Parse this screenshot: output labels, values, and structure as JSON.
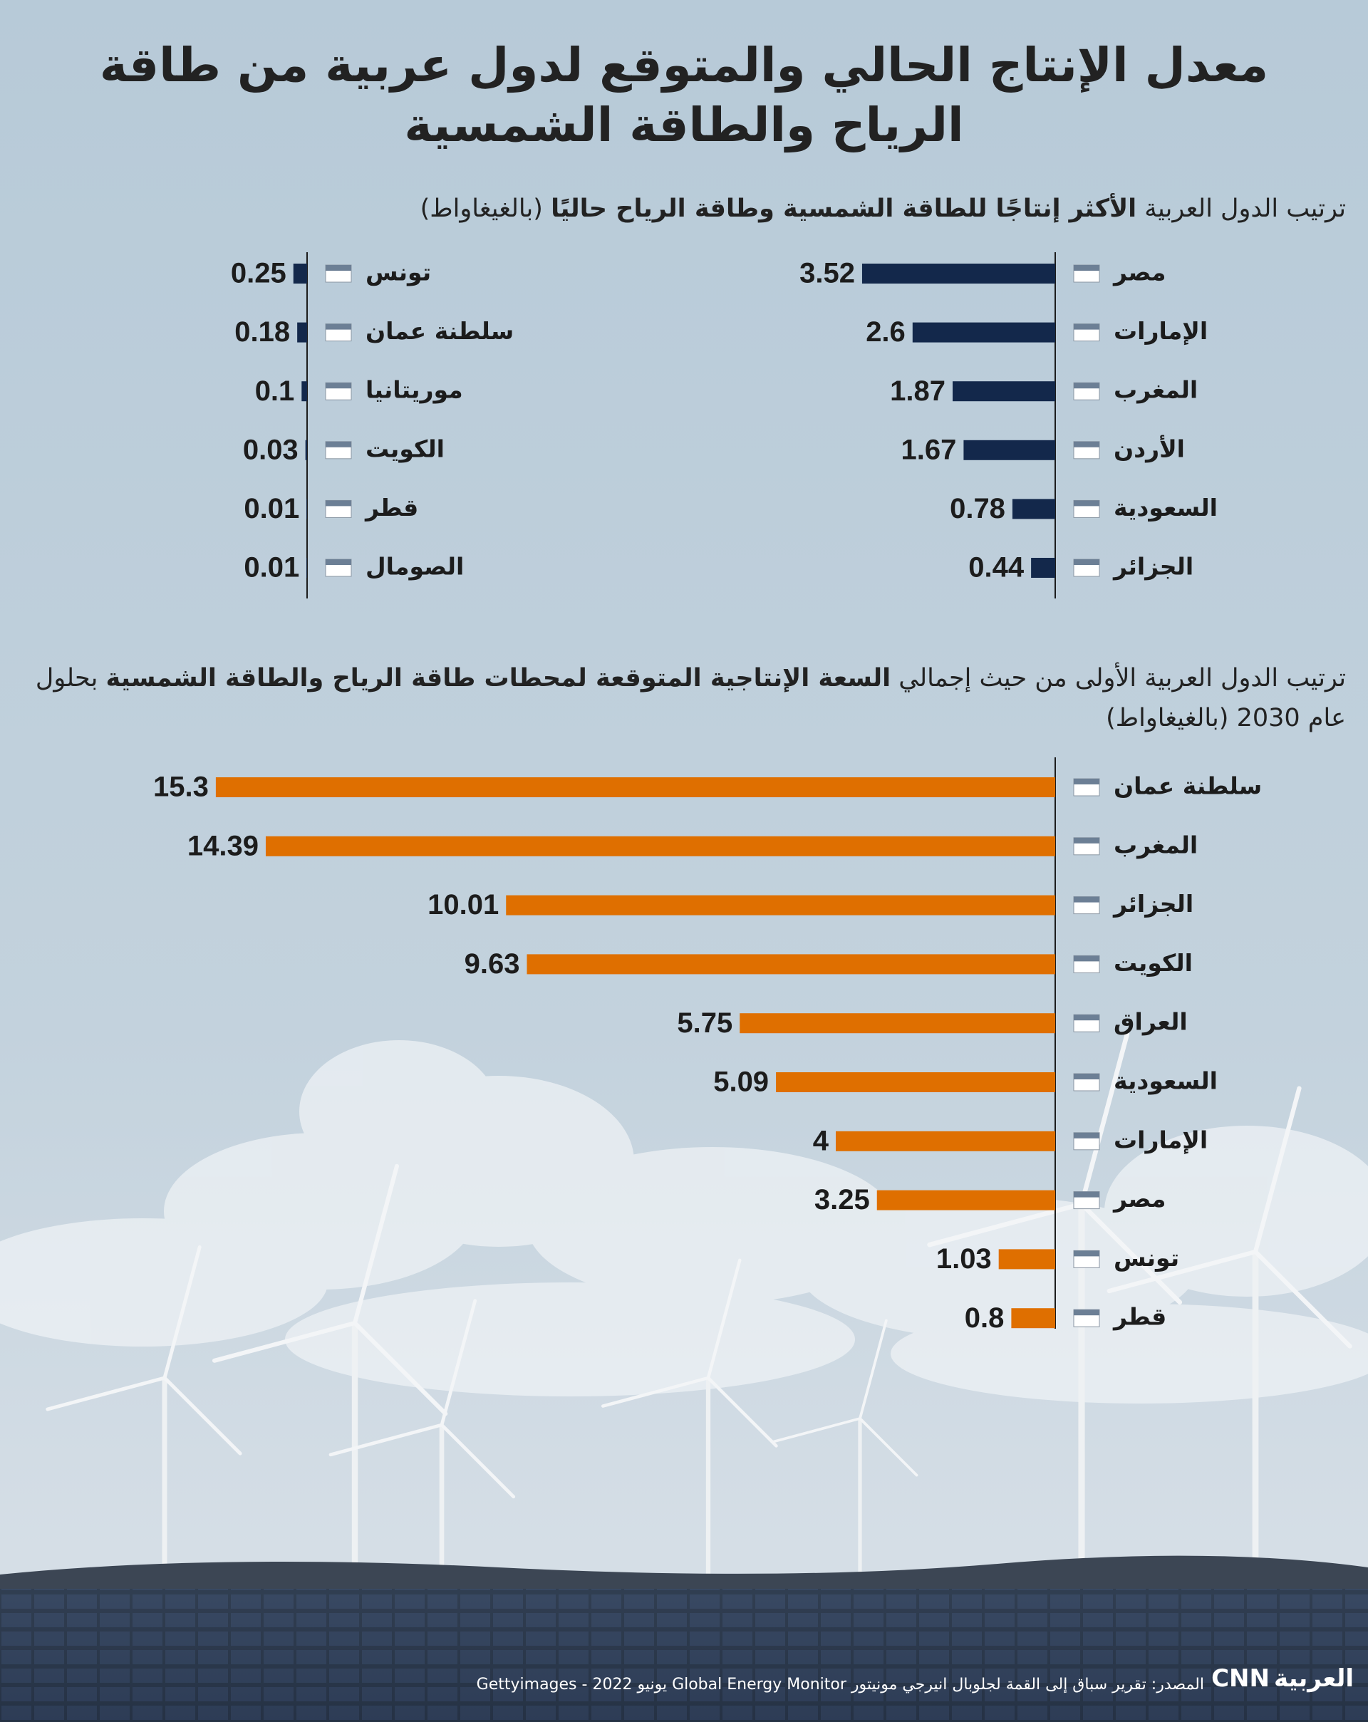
{
  "title_lines": [
    "معدل الإنتاج الحالي والمتوقع لدول عربية من طاقة",
    "الرياح والطاقة الشمسية"
  ],
  "subtitle_1": [
    "ترتيب الدول العربية",
    "الأكثر إنتاجًا للطاقة الشمسية وطاقة الرياح حاليًا",
    "(بالغيغاواط)"
  ],
  "subtitle_2": [
    "ترتيب الدول العربية الأولى من حيث إجمالي",
    "السعة الإنتاجية المتوقعة لمحطات طاقة الرياح والطاقة الشمسية",
    "بحلول عام 2030 (بالغيغاواط)"
  ],
  "chart_data": [
    {
      "type": "bar",
      "orientation": "horizontal",
      "categories": [
        "مصر",
        "الإمارات",
        "المغرب",
        "الأردن",
        "السعودية",
        "الجزائر"
      ],
      "values": [
        3.52,
        2.6,
        1.87,
        1.67,
        0.78,
        0.44
      ],
      "color": "#13284b",
      "xlim": [
        0,
        4
      ]
    },
    {
      "type": "bar",
      "orientation": "horizontal",
      "categories": [
        "تونس",
        "سلطنة عمان",
        "موريتانيا",
        "الكويت",
        "قطر",
        "الصومال"
      ],
      "values": [
        0.25,
        0.18,
        0.1,
        0.03,
        0.01,
        0.01
      ],
      "color": "#13284b",
      "xlim": [
        0,
        4
      ]
    },
    {
      "type": "bar",
      "orientation": "horizontal",
      "categories": [
        "سلطنة عمان",
        "المغرب",
        "الجزائر",
        "الكويت",
        "العراق",
        "السعودية",
        "الإمارات",
        "مصر",
        "تونس",
        "قطر"
      ],
      "values": [
        15.3,
        14.39,
        10.01,
        9.63,
        5.75,
        5.09,
        4,
        3.25,
        1.03,
        0.8
      ],
      "color": "#df6f00",
      "xlim": [
        0,
        16
      ]
    }
  ],
  "footer": {
    "source": "المصدر: تقرير سباق إلى القمة لجلوبال انيرجي مونيتور Global Energy Monitor  يونيو 2022 - Gettyimages",
    "logo": [
      "CNN",
      "العربية"
    ]
  }
}
